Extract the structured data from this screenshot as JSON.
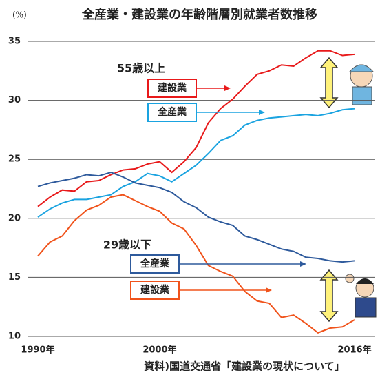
{
  "chart_data": {
    "type": "line",
    "title": "全産業・建設業の年齢階層別就業者数推移",
    "y_unit": "(%)",
    "source": "資料)国道交通省「建設業の現状について」",
    "annotations": [
      "55歳以上",
      "29歳以下"
    ],
    "x": [
      1990,
      1991,
      1992,
      1993,
      1994,
      1995,
      1996,
      1997,
      1998,
      1999,
      2000,
      2001,
      2002,
      2003,
      2004,
      2005,
      2006,
      2007,
      2008,
      2009,
      2010,
      2011,
      2012,
      2013,
      2014,
      2015,
      2016
    ],
    "xlim": [
      1990,
      2016
    ],
    "xticks": [
      {
        "value": 1990,
        "label": "1990年"
      },
      {
        "value": 2000,
        "label": "2000年"
      },
      {
        "value": 2016,
        "label": "2016年"
      }
    ],
    "ylim": [
      10,
      35
    ],
    "yticks": [
      10,
      15,
      20,
      25,
      30,
      35
    ],
    "grid": true,
    "series": [
      {
        "name": "建設業",
        "color": "#e8191a",
        "values": [
          21.0,
          21.8,
          22.4,
          22.3,
          23.1,
          23.2,
          23.7,
          24.1,
          24.2,
          24.6,
          24.8,
          23.9,
          24.8,
          26.0,
          28.1,
          29.3,
          30.1,
          31.2,
          32.2,
          32.5,
          33.0,
          32.9,
          33.6,
          34.2,
          34.2,
          33.8,
          33.9
        ]
      },
      {
        "name": "全産業",
        "color": "#1aa3e0",
        "values": [
          20.1,
          20.8,
          21.3,
          21.6,
          21.6,
          21.8,
          22.0,
          22.7,
          23.1,
          23.8,
          23.6,
          23.1,
          23.8,
          24.5,
          25.5,
          26.6,
          27.0,
          27.9,
          28.3,
          28.5,
          28.6,
          28.7,
          28.8,
          28.7,
          28.9,
          29.2,
          29.3
        ]
      },
      {
        "name": "全産業",
        "color": "#2e5a9c",
        "values": [
          22.7,
          23.0,
          23.2,
          23.4,
          23.7,
          23.6,
          23.9,
          23.5,
          23.0,
          22.8,
          22.6,
          22.2,
          21.4,
          20.9,
          20.1,
          19.7,
          19.4,
          18.5,
          18.2,
          17.8,
          17.4,
          17.2,
          16.7,
          16.6,
          16.4,
          16.3,
          16.4
        ]
      },
      {
        "name": "建設業",
        "color": "#f0531b",
        "values": [
          16.8,
          18.0,
          18.5,
          19.8,
          20.7,
          21.1,
          21.8,
          22.0,
          21.5,
          21.0,
          20.6,
          19.6,
          19.1,
          17.7,
          16.0,
          15.5,
          15.1,
          13.8,
          13.0,
          12.8,
          11.6,
          11.8,
          11.1,
          10.3,
          10.7,
          10.8,
          11.4
        ]
      }
    ]
  }
}
